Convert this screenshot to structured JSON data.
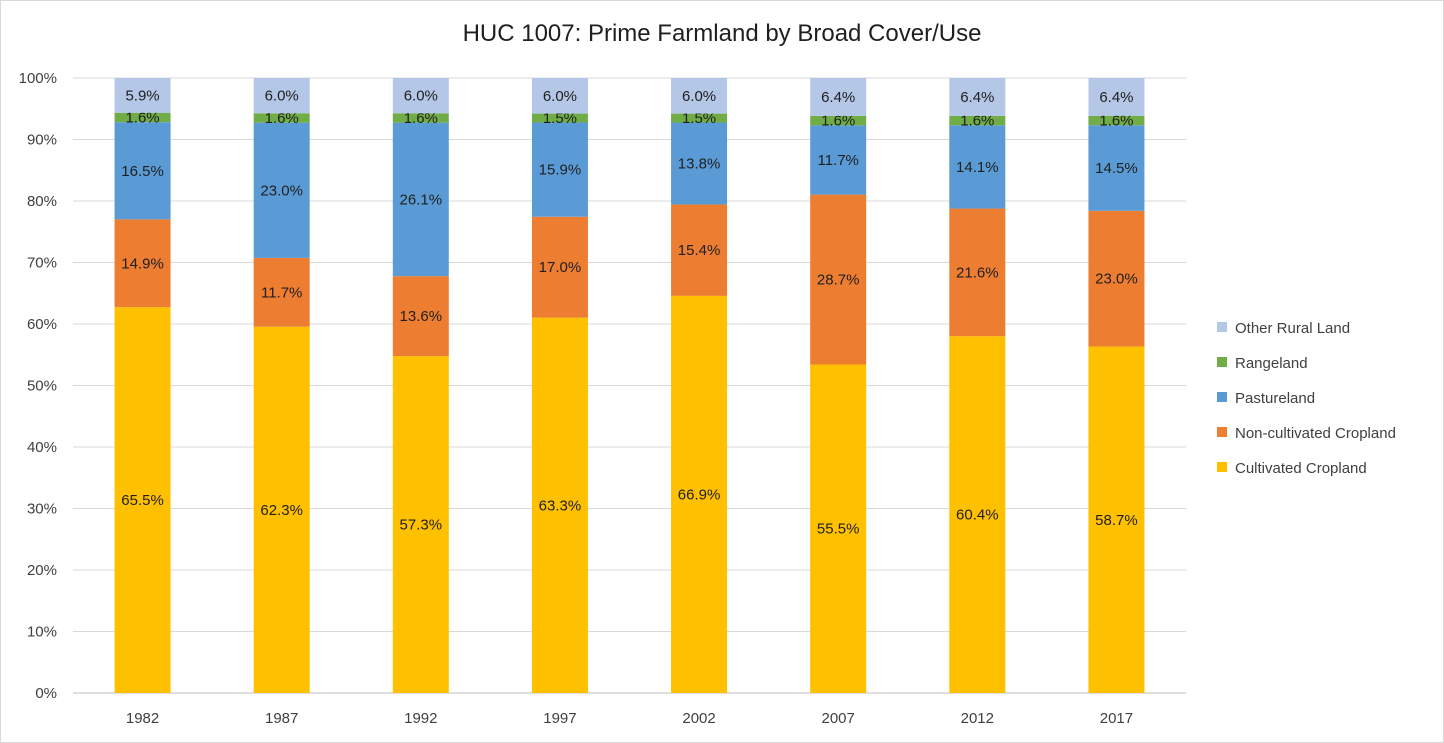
{
  "chart_data": {
    "type": "bar",
    "stacked": true,
    "percent_stacked": true,
    "title": "HUC 1007:  Prime Farmland by Broad Cover/Use",
    "categories": [
      "1982",
      "1987",
      "1992",
      "1997",
      "2002",
      "2007",
      "2012",
      "2017"
    ],
    "y_ticks": [
      "0%",
      "10%",
      "20%",
      "30%",
      "40%",
      "50%",
      "60%",
      "70%",
      "80%",
      "90%",
      "100%"
    ],
    "ylim": [
      0,
      100
    ],
    "grid": true,
    "legend_position": "right",
    "series": [
      {
        "name": "Cultivated Cropland",
        "color": "#FFC000",
        "values": [
          65.5,
          62.3,
          57.3,
          63.3,
          66.9,
          55.5,
          60.4,
          58.7
        ],
        "labels": [
          "65.5%",
          "62.3%",
          "57.3%",
          "63.3%",
          "66.9%",
          "55.5%",
          "60.4%",
          "58.7%"
        ]
      },
      {
        "name": "Non-cultivated Cropland",
        "color": "#ED7D31",
        "values": [
          14.9,
          11.7,
          13.6,
          17.0,
          15.4,
          28.7,
          21.6,
          23.0
        ],
        "labels": [
          "14.9%",
          "11.7%",
          "13.6%",
          "17.0%",
          "15.4%",
          "28.7%",
          "21.6%",
          "23.0%"
        ]
      },
      {
        "name": "Pastureland",
        "color": "#5B9BD5",
        "values": [
          16.5,
          23.0,
          26.1,
          15.9,
          13.8,
          11.7,
          14.1,
          14.5
        ],
        "labels": [
          "16.5%",
          "23.0%",
          "26.1%",
          "15.9%",
          "13.8%",
          "11.7%",
          "14.1%",
          "14.5%"
        ]
      },
      {
        "name": "Rangeland",
        "color": "#70AD47",
        "values": [
          1.6,
          1.6,
          1.6,
          1.5,
          1.5,
          1.6,
          1.6,
          1.6
        ],
        "labels": [
          "1.6%",
          "1.6%",
          "1.6%",
          "1.5%",
          "1.5%",
          "1.6%",
          "1.6%",
          "1.6%"
        ]
      },
      {
        "name": "Other Rural Land",
        "color": "#B4C7E7",
        "values": [
          5.9,
          6.0,
          6.0,
          6.0,
          6.0,
          6.4,
          6.4,
          6.4
        ],
        "labels": [
          "5.9%",
          "6.0%",
          "6.0%",
          "6.0%",
          "6.0%",
          "6.4%",
          "6.4%",
          "6.4%"
        ]
      }
    ]
  }
}
